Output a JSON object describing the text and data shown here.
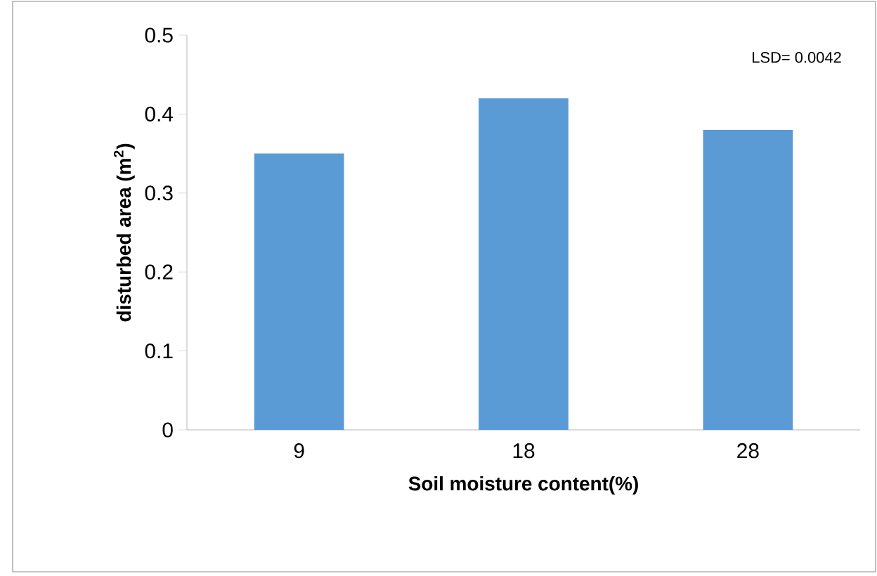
{
  "chart_data": {
    "type": "bar",
    "xlabel": "Soil moisture content(%)",
    "ylabel": "disturbed area (m$^{2}$)",
    "categories": [
      "9",
      "18",
      "28"
    ],
    "values": [
      0.35,
      0.42,
      0.38
    ],
    "color": "#5b9bd5",
    "ylim": [
      0,
      0.5
    ],
    "yticks": [
      0,
      0.1,
      0.2,
      0.3,
      0.4,
      0.5
    ],
    "annotations": [
      "LSD= 0.0042"
    ]
  }
}
